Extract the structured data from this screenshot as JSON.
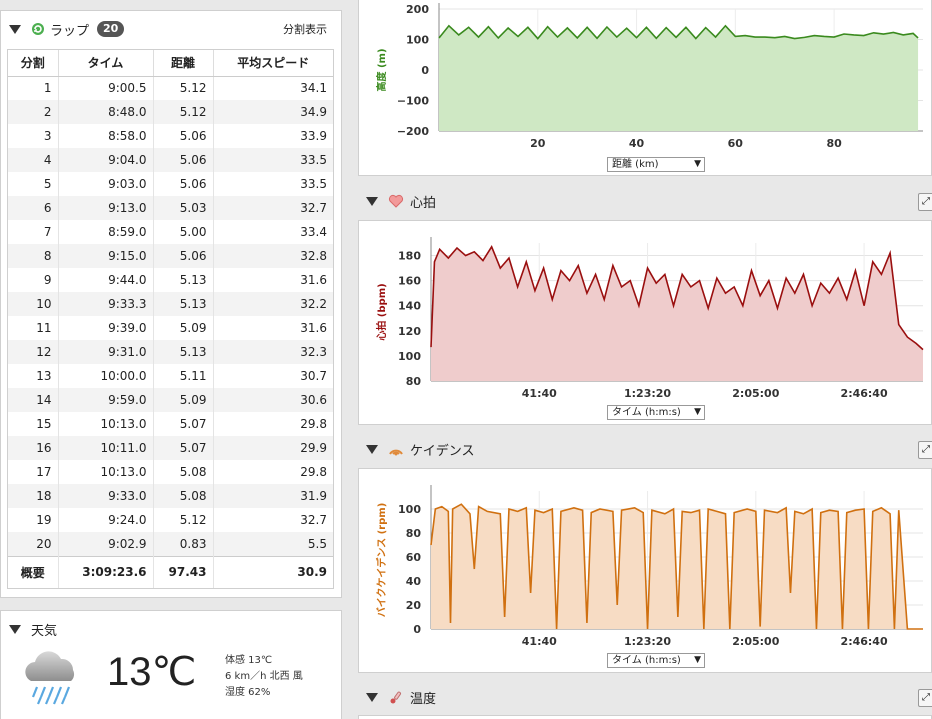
{
  "laps": {
    "title": "ラップ",
    "count": "20",
    "split_view": "分割表示",
    "columns": [
      "分割",
      "タイム",
      "距離",
      "平均スピード"
    ],
    "rows": [
      [
        "1",
        "9:00.5",
        "5.12",
        "34.1"
      ],
      [
        "2",
        "8:48.0",
        "5.12",
        "34.9"
      ],
      [
        "3",
        "8:58.0",
        "5.06",
        "33.9"
      ],
      [
        "4",
        "9:04.0",
        "5.06",
        "33.5"
      ],
      [
        "5",
        "9:03.0",
        "5.06",
        "33.5"
      ],
      [
        "6",
        "9:13.0",
        "5.03",
        "32.7"
      ],
      [
        "7",
        "8:59.0",
        "5.00",
        "33.4"
      ],
      [
        "8",
        "9:15.0",
        "5.06",
        "32.8"
      ],
      [
        "9",
        "9:44.0",
        "5.13",
        "31.6"
      ],
      [
        "10",
        "9:33.3",
        "5.13",
        "32.2"
      ],
      [
        "11",
        "9:39.0",
        "5.09",
        "31.6"
      ],
      [
        "12",
        "9:31.0",
        "5.13",
        "32.3"
      ],
      [
        "13",
        "10:00.0",
        "5.11",
        "30.7"
      ],
      [
        "14",
        "9:59.0",
        "5.09",
        "30.6"
      ],
      [
        "15",
        "10:13.0",
        "5.07",
        "29.8"
      ],
      [
        "16",
        "10:11.0",
        "5.07",
        "29.9"
      ],
      [
        "17",
        "10:13.0",
        "5.08",
        "29.8"
      ],
      [
        "18",
        "9:33.0",
        "5.08",
        "31.9"
      ],
      [
        "19",
        "9:24.0",
        "5.12",
        "32.7"
      ],
      [
        "20",
        "9:02.9",
        "0.83",
        "5.5"
      ]
    ],
    "summary": [
      "概要",
      "3:09:23.6",
      "97.43",
      "30.9"
    ]
  },
  "weather": {
    "title": "天気",
    "temp": "13℃",
    "feels": "体感 13℃",
    "wind": "6 km／h 北西 風",
    "humidity": "湿度 62%",
    "icon": "rain-cloud-icon"
  },
  "sections": {
    "hr_title": "心拍",
    "cad_title": "ケイデンス",
    "temp_title": "温度"
  },
  "selects": {
    "elev": "距離 (km)",
    "hr": "タイム (h:m:s)",
    "cad": "タイム (h:m:s)"
  },
  "chart_data": [
    {
      "type": "area",
      "ylabel": "高度 (m)",
      "ylim": [
        -200,
        200
      ],
      "yticks": [
        "200",
        "100",
        "0",
        "−100",
        "−200"
      ],
      "xticks": [
        "20",
        "40",
        "60",
        "80"
      ],
      "xlim": [
        0,
        98
      ],
      "color": "#3a8a1e",
      "fill": "#cfe8c4",
      "x": [
        0,
        2,
        4,
        6,
        8,
        10,
        12,
        14,
        16,
        18,
        20,
        22,
        24,
        26,
        28,
        30,
        32,
        34,
        36,
        38,
        40,
        42,
        44,
        46,
        48,
        50,
        52,
        54,
        56,
        58,
        60,
        62,
        64,
        66,
        68,
        70,
        72,
        74,
        76,
        78,
        80,
        82,
        84,
        86,
        88,
        90,
        92,
        94,
        96,
        97
      ],
      "y": [
        105,
        145,
        115,
        140,
        108,
        142,
        105,
        138,
        110,
        140,
        103,
        142,
        108,
        138,
        105,
        140,
        104,
        141,
        108,
        137,
        106,
        140,
        104,
        139,
        107,
        140,
        103,
        139,
        108,
        145,
        110,
        113,
        108,
        108,
        106,
        110,
        103,
        107,
        113,
        110,
        108,
        118,
        115,
        113,
        122,
        118,
        123,
        115,
        120,
        105
      ]
    },
    {
      "type": "area",
      "ylabel": "心拍 (bpm)",
      "ylim": [
        80,
        190
      ],
      "yticks": [
        "180",
        "160",
        "140",
        "120",
        "100",
        "80"
      ],
      "xticks": [
        "41:40",
        "1:23:20",
        "2:05:00",
        "2:46:40"
      ],
      "xlim": [
        0,
        11360
      ],
      "color": "#9a0f0f",
      "fill": "#efcccc",
      "x": [
        0,
        80,
        200,
        400,
        600,
        800,
        1000,
        1200,
        1400,
        1600,
        1800,
        2000,
        2200,
        2400,
        2600,
        2800,
        3000,
        3200,
        3400,
        3600,
        3800,
        4000,
        4200,
        4400,
        4600,
        4800,
        5000,
        5200,
        5400,
        5600,
        5800,
        6000,
        6200,
        6400,
        6600,
        6800,
        7000,
        7200,
        7400,
        7600,
        7800,
        8000,
        8200,
        8400,
        8600,
        8800,
        9000,
        9200,
        9400,
        9600,
        9800,
        10000,
        10200,
        10400,
        10600,
        10800,
        11000,
        11200,
        11360
      ],
      "y": [
        107,
        175,
        185,
        178,
        186,
        180,
        183,
        176,
        187,
        170,
        178,
        155,
        175,
        152,
        170,
        145,
        168,
        160,
        172,
        150,
        165,
        145,
        172,
        155,
        160,
        140,
        170,
        158,
        165,
        140,
        165,
        155,
        160,
        138,
        162,
        150,
        155,
        140,
        168,
        148,
        160,
        138,
        162,
        150,
        165,
        140,
        158,
        150,
        162,
        145,
        168,
        140,
        175,
        165,
        182,
        125,
        115,
        110,
        105
      ]
    },
    {
      "type": "area",
      "ylabel": "バイクケイデンス (rpm)",
      "ylim": [
        0,
        115
      ],
      "yticks": [
        "100",
        "80",
        "60",
        "40",
        "20",
        "0"
      ],
      "xticks": [
        "41:40",
        "1:23:20",
        "2:05:00",
        "2:46:40"
      ],
      "xlim": [
        0,
        11360
      ],
      "color": "#d07010",
      "fill": "#f7dcc4",
      "x": [
        0,
        100,
        250,
        400,
        450,
        500,
        700,
        900,
        1000,
        1100,
        1300,
        1600,
        1700,
        1800,
        2000,
        2200,
        2300,
        2400,
        2600,
        2800,
        2900,
        3000,
        3300,
        3500,
        3600,
        3700,
        3900,
        4200,
        4300,
        4400,
        4700,
        4900,
        5000,
        5100,
        5400,
        5600,
        5700,
        5800,
        6000,
        6200,
        6300,
        6400,
        6600,
        6800,
        6900,
        7000,
        7300,
        7500,
        7600,
        7700,
        8000,
        8200,
        8300,
        8400,
        8600,
        8800,
        8900,
        9000,
        9200,
        9400,
        9500,
        9600,
        9800,
        10000,
        10100,
        10200,
        10400,
        10600,
        10700,
        10800,
        11000,
        11360
      ],
      "y": [
        70,
        100,
        102,
        98,
        5,
        100,
        104,
        96,
        50,
        102,
        98,
        96,
        10,
        100,
        98,
        101,
        30,
        99,
        97,
        100,
        0,
        98,
        101,
        99,
        5,
        97,
        100,
        98,
        20,
        99,
        101,
        97,
        0,
        99,
        96,
        100,
        10,
        98,
        97,
        99,
        0,
        100,
        98,
        96,
        0,
        97,
        100,
        98,
        2,
        99,
        97,
        101,
        30,
        98,
        96,
        100,
        0,
        97,
        99,
        98,
        0,
        97,
        99,
        100,
        0,
        98,
        101,
        96,
        0,
        99,
        0,
        0
      ]
    }
  ]
}
